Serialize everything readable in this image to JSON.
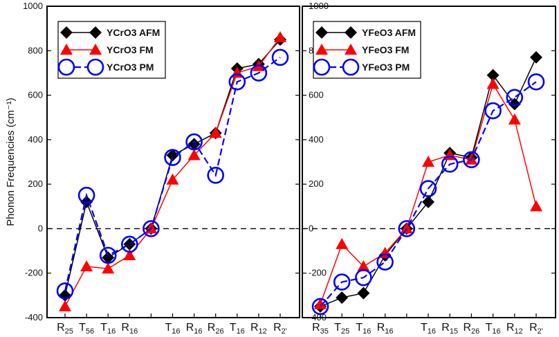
{
  "chart_data": {
    "type": "line",
    "ylabel": "Phonon Frequencies (cm⁻¹)",
    "ylim": [
      -400,
      1000
    ],
    "yticks": [
      -400,
      -200,
      0,
      200,
      400,
      600,
      800,
      1000
    ],
    "zero_line": "dashed",
    "grid": false,
    "legend_position": "top-left",
    "panels": [
      {
        "x_positions": [
          0,
          1,
          2,
          3,
          4,
          5,
          6,
          7,
          8,
          9,
          10
        ],
        "x_tick_labels": [
          "R25",
          "T56",
          "T16",
          "R16",
          "",
          "T16",
          "R16",
          "R26",
          "T16",
          "R12",
          "R2'"
        ],
        "series": [
          {
            "name": "YCrO3 AFM",
            "color": "#000000",
            "marker": "diamond",
            "values": [
              -300,
              120,
              -130,
              -70,
              0,
              330,
              380,
              430,
              720,
              740,
              850
            ]
          },
          {
            "name": "YCrO3 FM",
            "color": "#ff0000",
            "marker": "triangle",
            "values": [
              -350,
              -170,
              -180,
              -120,
              0,
              220,
              330,
              430,
              700,
              730,
              860
            ]
          },
          {
            "name": "YCrO3 PM",
            "color": "#0000ff",
            "marker": "circle",
            "values": [
              -280,
              150,
              -120,
              -70,
              0,
              320,
              390,
              240,
              660,
              700,
              770
            ]
          }
        ]
      },
      {
        "x_positions": [
          0,
          1,
          2,
          3,
          4,
          5,
          6,
          7,
          8,
          9,
          10
        ],
        "x_tick_labels": [
          "R35",
          "T25",
          "T16",
          "R16",
          "",
          "T16",
          "R15",
          "R26",
          "T16",
          "R12",
          "R2'"
        ],
        "series": [
          {
            "name": "YFeO3 AFM",
            "color": "#000000",
            "marker": "diamond",
            "values": [
              -350,
              -310,
              -290,
              -120,
              0,
              120,
              340,
              320,
              690,
              560,
              770
            ]
          },
          {
            "name": "YFeO3 FM",
            "color": "#ff0000",
            "marker": "triangle",
            "values": [
              -340,
              -70,
              -170,
              -110,
              0,
              300,
              330,
              310,
              650,
              490,
              100
            ]
          },
          {
            "name": "YFeO3 PM",
            "color": "#0000ff",
            "marker": "circle",
            "values": [
              -350,
              -240,
              -220,
              -150,
              0,
              180,
              290,
              310,
              530,
              590,
              660
            ]
          }
        ]
      }
    ]
  }
}
